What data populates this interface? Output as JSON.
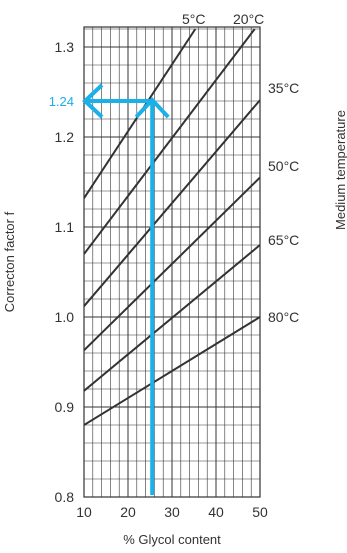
{
  "chart_data": {
    "type": "line",
    "xlabel": "% Glycol content",
    "ylabel": "Correcton factor f",
    "right_label": "Medium temperature",
    "xlim": [
      10,
      50
    ],
    "ylim": [
      0.8,
      1.32
    ],
    "grid": true,
    "x_tick_values": [
      10,
      20,
      30,
      40,
      50
    ],
    "x_tick_labels": [
      "10",
      "20",
      "30",
      "40",
      "50"
    ],
    "y_tick_values": [
      0.8,
      0.9,
      1.0,
      1.1,
      1.2,
      1.3
    ],
    "y_tick_labels": [
      "0.8",
      "0.9",
      "1.0",
      "1.1",
      "1.2",
      "1.3"
    ],
    "series": [
      {
        "name": "5°C",
        "x": [
          10,
          35.3
        ],
        "y": [
          1.132,
          1.32
        ]
      },
      {
        "name": "20°C",
        "x": [
          10,
          48.8
        ],
        "y": [
          1.07,
          1.32
        ]
      },
      {
        "name": "35°C",
        "x": [
          10,
          50
        ],
        "y": [
          1.012,
          1.241
        ]
      },
      {
        "name": "50°C",
        "x": [
          10,
          50
        ],
        "y": [
          0.963,
          1.155
        ]
      },
      {
        "name": "65°C",
        "x": [
          10,
          50
        ],
        "y": [
          0.918,
          1.08
        ]
      },
      {
        "name": "80°C",
        "x": [
          10,
          50
        ],
        "y": [
          0.88,
          1.0
        ]
      }
    ],
    "annotation": {
      "x": 25.5,
      "y": 1.24,
      "label": "1.24",
      "color": "#1ab0e8"
    },
    "line_color": "#333333",
    "grid_color": "#333333"
  }
}
